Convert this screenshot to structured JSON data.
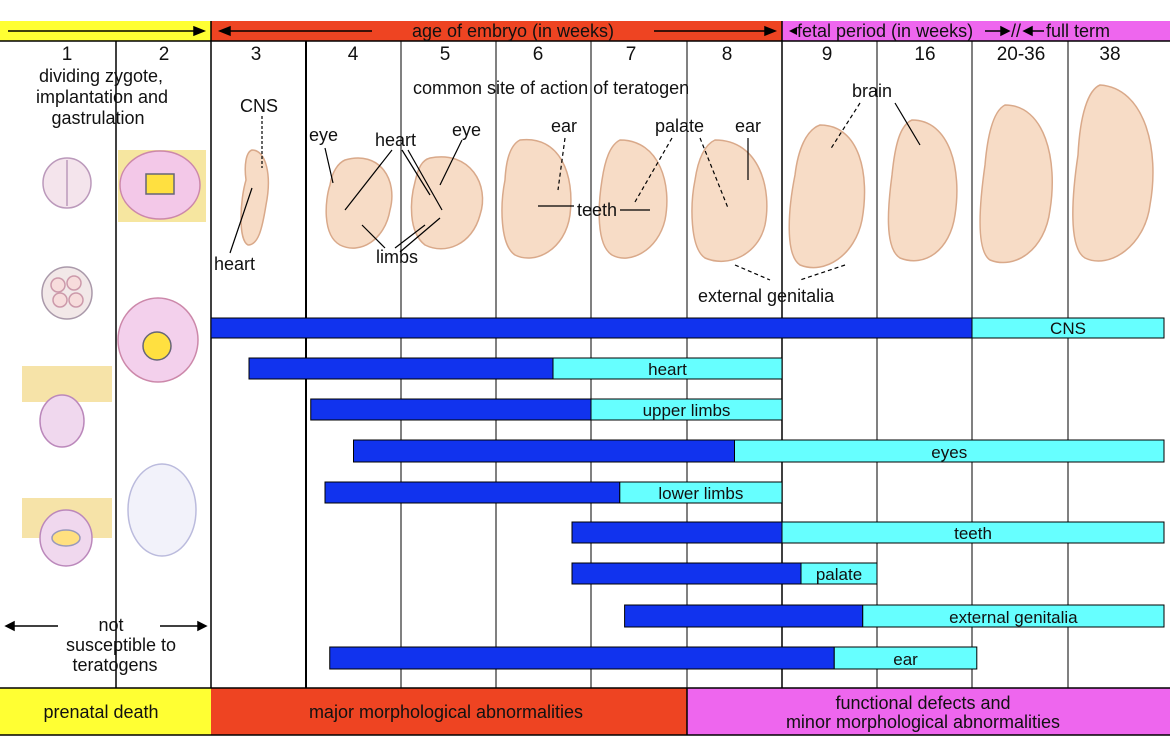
{
  "header": {
    "preembryo_arrow": "",
    "embryo": "age of embryo (in weeks)",
    "fetal": "fetal period (in weeks)",
    "break": "//",
    "fullterm": "full term"
  },
  "weeks": [
    "1",
    "2",
    "3",
    "4",
    "5",
    "6",
    "7",
    "8",
    "9",
    "16",
    "20-36",
    "38"
  ],
  "left_text": {
    "lines": [
      "dividing zygote,",
      "implantation and",
      "gastrulation"
    ]
  },
  "not_susceptible": {
    "lines": [
      "not",
      "susceptible to",
      "teratogens"
    ]
  },
  "annotations": {
    "common_site": "common site of action of teratogen",
    "cns": "CNS",
    "heart_lower": "heart",
    "eye_left": "eye",
    "heart_upper": "heart",
    "eye_right": "eye",
    "limbs": "limbs",
    "ear_left": "ear",
    "teeth": "teeth",
    "palate": "palate",
    "ear_right": "ear",
    "external_genitalia": "external genitalia",
    "brain": "brain"
  },
  "bars": [
    {
      "label": "CNS",
      "start": 3,
      "sensitive_end": 11,
      "end": 13
    },
    {
      "label": "heart",
      "start": 3.4,
      "sensitive_end": 6.6,
      "end": 9
    },
    {
      "label": "upper limbs",
      "start": 4.05,
      "sensitive_end": 7,
      "end": 9
    },
    {
      "label": "eyes",
      "start": 4.5,
      "sensitive_end": 8.5,
      "end": 13
    },
    {
      "label": "lower limbs",
      "start": 4.2,
      "sensitive_end": 7.3,
      "end": 9
    },
    {
      "label": "teeth",
      "start": 6.8,
      "sensitive_end": 9,
      "end": 13
    },
    {
      "label": "palate",
      "start": 6.8,
      "sensitive_end": 9.2,
      "end": 10
    },
    {
      "label": "external genitalia",
      "start": 7.35,
      "sensitive_end": 9.85,
      "end": 13
    },
    {
      "label": "ear",
      "start": 4.25,
      "sensitive_end": 9.55,
      "end": 11.05
    }
  ],
  "footer": {
    "prenatal": "prenatal death",
    "major": "major morphological abnormalities",
    "functional_line1": "functional defects and",
    "functional_line2": "minor morphological abnormalities"
  },
  "colors": {
    "yellow": "#ffff33",
    "red": "#ee4422",
    "magenta": "#ee66ee",
    "sensitive": "#1133ee",
    "less_sensitive": "#66ffff",
    "fetus": "#f7dcc6"
  }
}
